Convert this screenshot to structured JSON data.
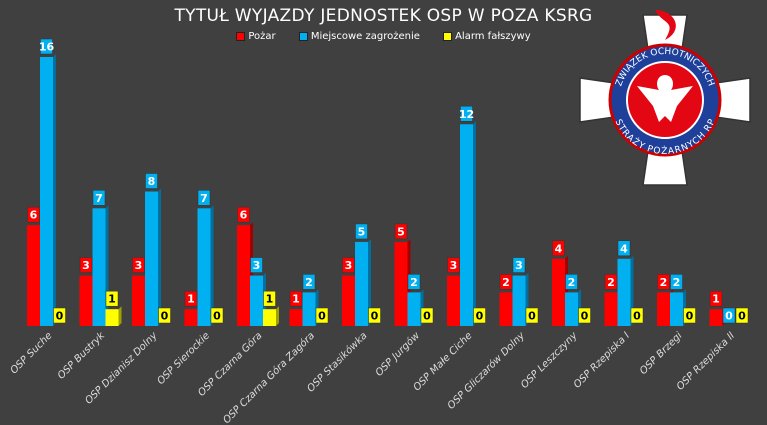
{
  "chart_data": {
    "type": "bar",
    "title": "TYTUŁ WYJAZDY JEDNOSTEK OSP W POZA KSRG",
    "categories": [
      "OSP Suche",
      "OSP Bustryk",
      "OSP Dzianisz Dolny",
      "OSP Sierockie",
      "OSP Czarna Góra",
      "OSP Czarna Góra Zagóra",
      "OSP Stasikówka",
      "OSP Jurgów",
      "OSP Małe Ciche",
      "OSP Gliczarów Dolny",
      "OSP Leszczyny",
      "OSP Rzepiska I",
      "OSP Brzegi",
      "OSP Rzepiska II"
    ],
    "series": [
      {
        "name": "Pożar",
        "color": "#ff0000",
        "values": [
          6,
          3,
          3,
          1,
          6,
          1,
          3,
          5,
          3,
          2,
          4,
          2,
          2,
          1
        ]
      },
      {
        "name": "Miejscowe zagrożenie",
        "color": "#00b0f0",
        "values": [
          16,
          7,
          8,
          7,
          3,
          2,
          5,
          2,
          12,
          3,
          2,
          4,
          2,
          0
        ]
      },
      {
        "name": "Alarm fałszywy",
        "color": "#ffff00",
        "values": [
          0,
          1,
          0,
          0,
          1,
          0,
          0,
          0,
          0,
          0,
          0,
          0,
          0,
          0
        ]
      }
    ],
    "xlabel": "",
    "ylabel": "",
    "ylim": [
      0,
      16
    ],
    "grid": false,
    "legend": "top"
  },
  "logo": {
    "text_top": "ZWIĄZEK OCHOTNICZYCH",
    "text_bottom": "STRAŻY POŻARNYCH RP"
  }
}
